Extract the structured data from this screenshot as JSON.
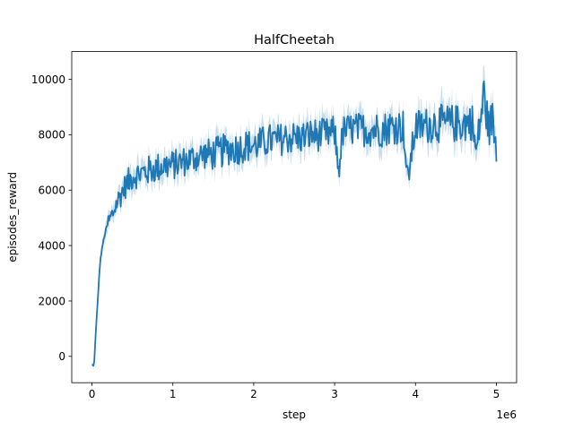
{
  "chart_data": {
    "type": "line",
    "title": "HalfCheetah",
    "xlabel": "step",
    "ylabel": "episodes_reward",
    "x_offset_label": "1e6",
    "xlim": [
      -250000,
      5250000
    ],
    "ylim": [
      -950,
      11000
    ],
    "x_ticks": [
      0,
      1000000,
      2000000,
      3000000,
      4000000,
      5000000
    ],
    "x_tick_labels": [
      "0",
      "1",
      "2",
      "3",
      "4",
      "5"
    ],
    "y_ticks": [
      0,
      2000,
      4000,
      6000,
      8000,
      10000
    ],
    "y_tick_labels": [
      "0",
      "2000",
      "4000",
      "6000",
      "8000",
      "10000"
    ],
    "grid": false,
    "legend": "none",
    "colors": {
      "line": "#1f77b4",
      "band": "#1f77b4"
    },
    "series": [
      {
        "x": [
          0,
          25000,
          50000,
          75000,
          100000,
          125000,
          150000,
          175000,
          200000,
          250000,
          300000,
          350000,
          400000,
          450000,
          500000,
          600000,
          700000,
          800000,
          900000,
          1000000,
          1100000,
          1200000,
          1300000,
          1400000,
          1500000,
          1600000,
          1700000,
          1800000,
          1900000,
          2000000,
          2100000,
          2200000,
          2300000,
          2400000,
          2500000,
          2600000,
          2700000,
          2800000,
          2900000,
          3000000,
          3050000,
          3100000,
          3200000,
          3300000,
          3400000,
          3500000,
          3600000,
          3700000,
          3800000,
          3850000,
          3900000,
          4000000,
          4100000,
          4200000,
          4300000,
          4400000,
          4500000,
          4600000,
          4700000,
          4750000,
          4800000,
          4850000,
          4900000,
          4950000,
          5000000
        ],
        "y": [
          -300,
          -350,
          1000,
          2200,
          3400,
          3900,
          4300,
          4600,
          4800,
          5100,
          5500,
          5800,
          6100,
          6300,
          6500,
          6600,
          6700,
          6800,
          6900,
          6900,
          7000,
          7100,
          7200,
          7300,
          7300,
          7400,
          7500,
          7500,
          7600,
          7600,
          7700,
          7800,
          7800,
          7900,
          7900,
          7900,
          8000,
          8000,
          8000,
          8100,
          6700,
          8100,
          8200,
          8200,
          8200,
          8200,
          8200,
          8300,
          8300,
          8300,
          6300,
          8300,
          8300,
          8400,
          8400,
          8400,
          8400,
          8400,
          8500,
          7300,
          8500,
          9500,
          8200,
          8600,
          7500
        ],
        "spread": [
          80,
          80,
          200,
          250,
          300,
          300,
          350,
          400,
          400,
          400,
          400,
          450,
          450,
          500,
          500,
          500,
          550,
          550,
          550,
          550,
          550,
          550,
          550,
          550,
          600,
          600,
          600,
          600,
          600,
          600,
          600,
          600,
          600,
          600,
          600,
          600,
          600,
          600,
          600,
          600,
          500,
          600,
          600,
          600,
          650,
          650,
          650,
          650,
          650,
          650,
          500,
          650,
          650,
          700,
          700,
          700,
          700,
          700,
          700,
          600,
          700,
          900,
          700,
          700,
          600
        ]
      }
    ]
  }
}
